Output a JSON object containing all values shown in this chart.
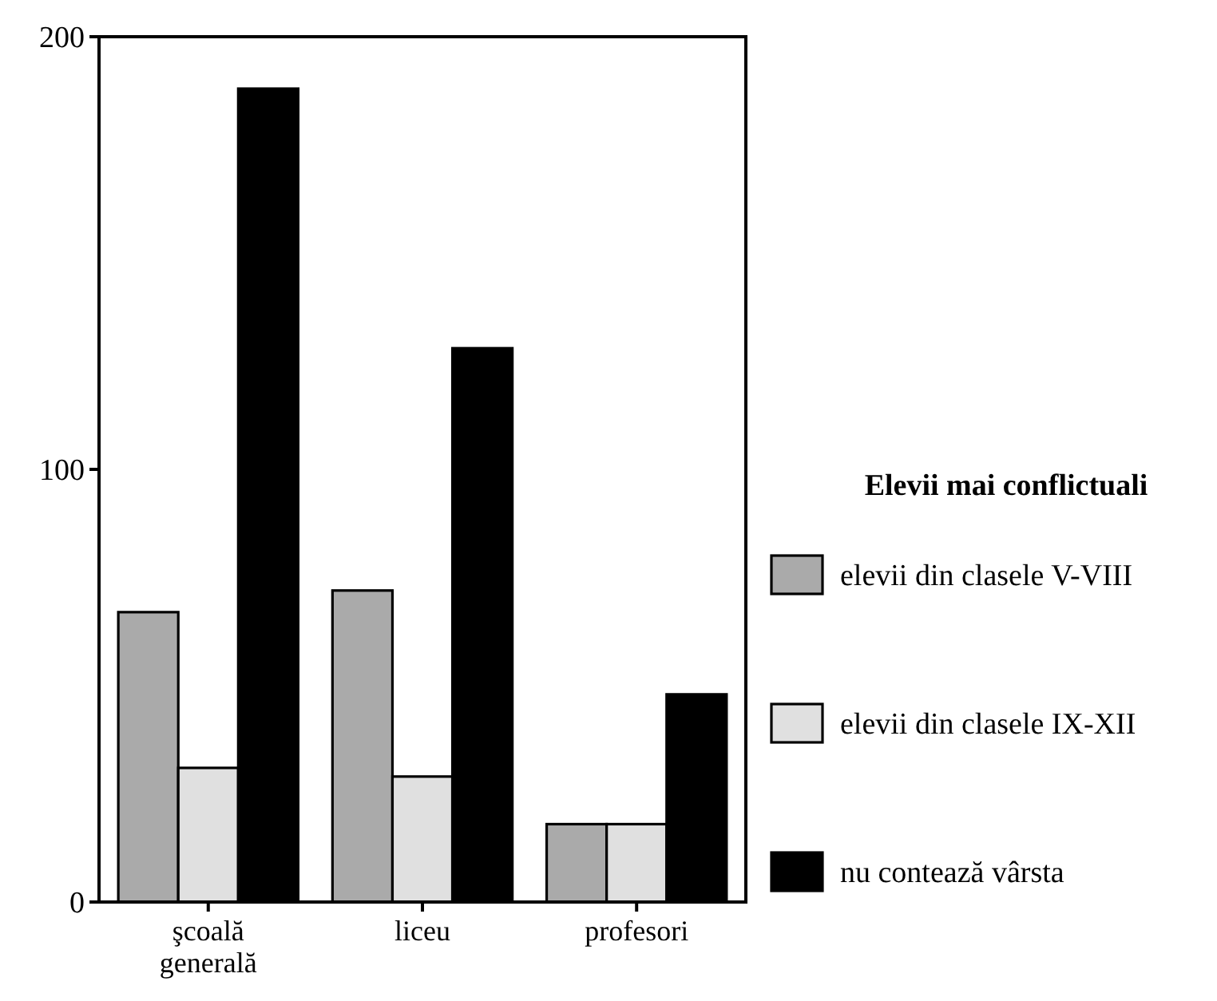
{
  "chart_data": {
    "type": "bar",
    "legend_title": "Elevii mai conflictuali",
    "categories": [
      "şcoală generală",
      "liceu",
      "profesori"
    ],
    "series": [
      {
        "name": "elevii din clasele V-VIII",
        "color": "#aaaaaa",
        "values": [
          67,
          72,
          18
        ]
      },
      {
        "name": "elevii din clasele IX-XII",
        "color": "#e0e0e0",
        "values": [
          31,
          29,
          18
        ]
      },
      {
        "name": "nu contează vârsta",
        "color": "#000000",
        "values": [
          188,
          128,
          48
        ]
      }
    ],
    "ylim": [
      0,
      200
    ],
    "yticks": [
      0,
      100,
      200
    ],
    "grid": false,
    "legend": "right"
  }
}
